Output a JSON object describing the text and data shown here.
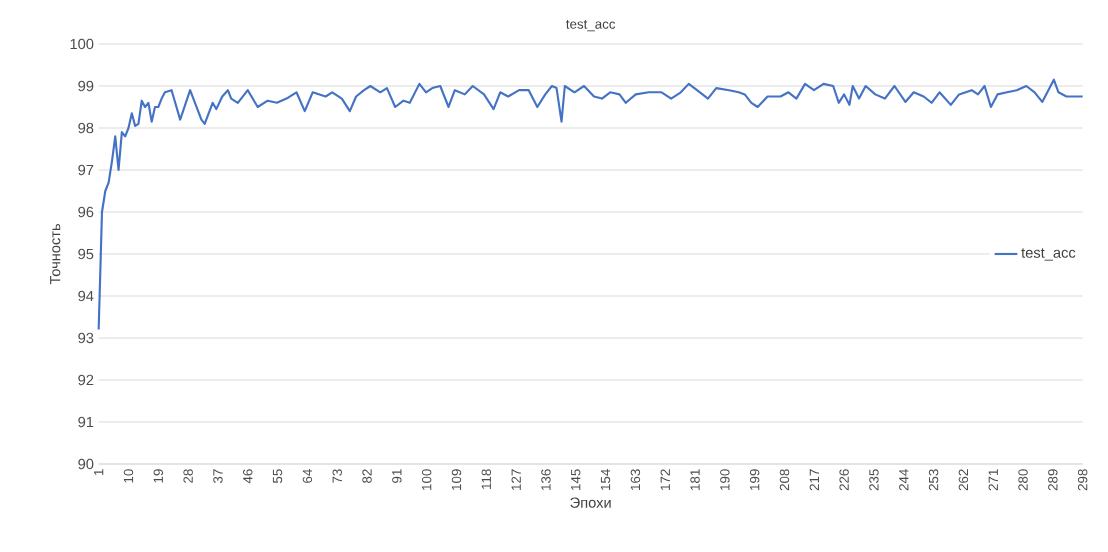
{
  "chart_data": {
    "type": "line",
    "title": "test_acc",
    "xlabel": "Эпохи",
    "ylabel": "Точность",
    "x": [
      1,
      2,
      3,
      4,
      5,
      6,
      7,
      8,
      9,
      10,
      11,
      12,
      13,
      14,
      15,
      16,
      17,
      18,
      19,
      20,
      21,
      23,
      25.6,
      28.6,
      32,
      33,
      35.4,
      36.5,
      38.3,
      40,
      41,
      43,
      46,
      49,
      52,
      54.8,
      57.7,
      60.7,
      63.2,
      65.6,
      69.5,
      71.5,
      74.4,
      76.8,
      78.7,
      81.1,
      83,
      86,
      88,
      90.5,
      93,
      94.9,
      97.8,
      99.8,
      101.7,
      104.1,
      106.6,
      108.5,
      111.5,
      113.9,
      117.3,
      120.2,
      122.2,
      124.6,
      127.9,
      130.8,
      133.4,
      135.8,
      137.8,
      139.2,
      140.7,
      141.7,
      144.6,
      147.5,
      150.5,
      152.9,
      155.4,
      158.2,
      160.1,
      163.1,
      167,
      170.9,
      173.8,
      176.7,
      179.1,
      181.6,
      184.9,
      187.4,
      191.3,
      194.2,
      196,
      198,
      199.9,
      202.9,
      206.8,
      209.2,
      211.6,
      214.2,
      216.9,
      219.8,
      222.7,
      224.4,
      226,
      227.6,
      228.6,
      230.5,
      232.5,
      235.4,
      238.3,
      241.2,
      244.5,
      247,
      250,
      252.4,
      254.8,
      258.2,
      260.7,
      264.5,
      266.4,
      268.4,
      270.3,
      272.3,
      275.2,
      278.1,
      281,
      283.5,
      285.8,
      289.3,
      290.7,
      293.1,
      295.6,
      298
    ],
    "series": [
      {
        "name": "test_acc",
        "color": "#4472c4",
        "values": [
          93.2,
          96.0,
          96.5,
          96.7,
          97.2,
          97.8,
          97.0,
          97.9,
          97.8,
          98.0,
          98.35,
          98.05,
          98.1,
          98.65,
          98.5,
          98.6,
          98.15,
          98.5,
          98.5,
          98.7,
          98.85,
          98.9,
          98.2,
          98.9,
          98.2,
          98.1,
          98.6,
          98.45,
          98.75,
          98.9,
          98.7,
          98.6,
          98.9,
          98.5,
          98.65,
          98.6,
          98.7,
          98.85,
          98.4,
          98.85,
          98.75,
          98.85,
          98.7,
          98.4,
          98.75,
          98.9,
          99.0,
          98.85,
          98.95,
          98.5,
          98.65,
          98.6,
          99.05,
          98.85,
          98.95,
          99.0,
          98.5,
          98.9,
          98.8,
          99.0,
          98.8,
          98.45,
          98.85,
          98.75,
          98.9,
          98.9,
          98.5,
          98.8,
          99.0,
          98.95,
          98.15,
          99.0,
          98.85,
          99.0,
          98.75,
          98.7,
          98.85,
          98.8,
          98.6,
          98.8,
          98.85,
          98.85,
          98.7,
          98.85,
          99.05,
          98.9,
          98.7,
          98.95,
          98.9,
          98.85,
          98.8,
          98.6,
          98.5,
          98.75,
          98.75,
          98.85,
          98.7,
          99.05,
          98.9,
          99.05,
          99.0,
          98.6,
          98.8,
          98.55,
          99.0,
          98.7,
          99.0,
          98.8,
          98.7,
          99.0,
          98.62,
          98.85,
          98.75,
          98.6,
          98.85,
          98.55,
          98.8,
          98.9,
          98.8,
          99.0,
          98.5,
          98.8,
          98.85,
          98.9,
          99.0,
          98.85,
          98.62,
          99.15,
          98.85,
          98.75,
          98.75,
          98.75
        ]
      }
    ],
    "xlim": [
      1,
      298
    ],
    "ylim": [
      90,
      100
    ],
    "xticks": [
      1,
      10,
      19,
      28,
      37,
      46,
      55,
      64,
      73,
      82,
      91,
      100,
      109,
      118,
      127,
      136,
      145,
      154,
      163,
      172,
      181,
      190,
      199,
      208,
      217,
      226,
      235,
      244,
      253,
      262,
      271,
      280,
      289,
      298
    ],
    "yticks": [
      90,
      91,
      92,
      93,
      94,
      95,
      96,
      97,
      98,
      99,
      100
    ],
    "grid": "y",
    "legend": "right",
    "marker": "none",
    "line_style": "solid"
  }
}
